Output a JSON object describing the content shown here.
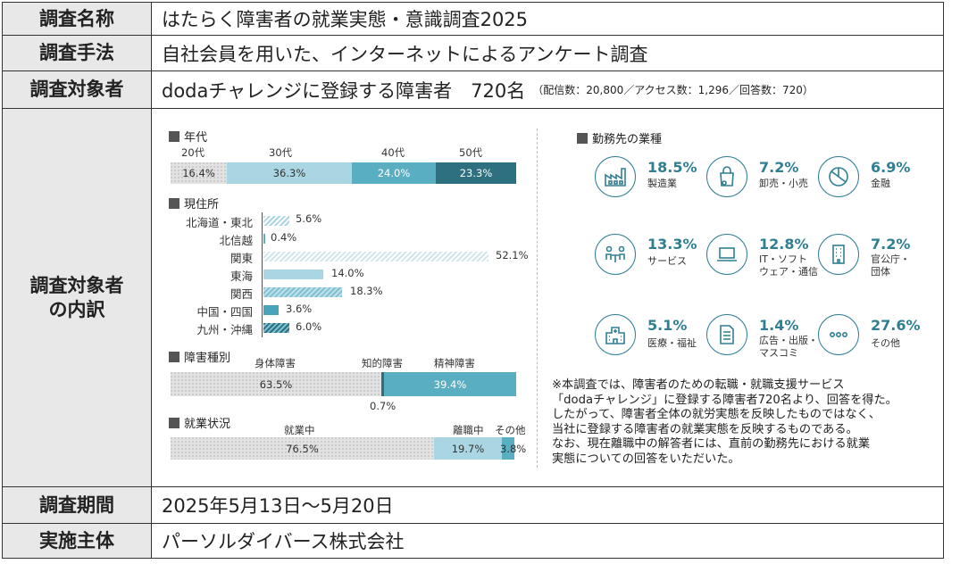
{
  "rows": {
    "name": {
      "label": "調査名称",
      "value": "はたらく障害者の就業実態・意識調査2025"
    },
    "method": {
      "label": "調査手法",
      "value": "自社会員を用いた、インターネットによるアンケート調査"
    },
    "target": {
      "label": "調査対象者",
      "value": "dodaチャレンジに登録する障害者　720名",
      "note": "（配信数：20,800／アクセス数：1,296／回答数：720）"
    },
    "breakdown": {
      "label_line1": "調査対象者",
      "label_line2": "の内訳"
    },
    "period": {
      "label": "調査期間",
      "value": "2025年5月13日～5月20日"
    },
    "org": {
      "label": "実施主体",
      "value": "パーソルダイバース株式会社"
    }
  },
  "age": {
    "title": "年代",
    "segments": [
      {
        "label": "20代",
        "value": "16.4%",
        "pct": 16.4
      },
      {
        "label": "30代",
        "value": "36.3%",
        "pct": 36.3
      },
      {
        "label": "40代",
        "value": "24.0%",
        "pct": 24.0
      },
      {
        "label": "50代",
        "value": "23.3%",
        "pct": 23.3
      }
    ]
  },
  "residence": {
    "title": "現住所",
    "items": [
      {
        "region": "北海道・東北",
        "value": "5.6%",
        "pct": 5.6
      },
      {
        "region": "北信越",
        "value": "0.4%",
        "pct": 0.4
      },
      {
        "region": "関東",
        "value": "52.1%",
        "pct": 52.1
      },
      {
        "region": "東海",
        "value": "14.0%",
        "pct": 14.0
      },
      {
        "region": "関西",
        "value": "18.3%",
        "pct": 18.3
      },
      {
        "region": "中国・四国",
        "value": "3.6%",
        "pct": 3.6
      },
      {
        "region": "九州・沖縄",
        "value": "6.0%",
        "pct": 6.0
      }
    ]
  },
  "disability": {
    "title": "障害種別",
    "segments": [
      {
        "label": "身体障害",
        "value": "63.5%",
        "pct": 63.5
      },
      {
        "label": "知的障害",
        "value": "0.7%",
        "pct": 0.7
      },
      {
        "label": "精神障害",
        "value": "39.4%",
        "pct": 39.4
      }
    ]
  },
  "employment": {
    "title": "就業状況",
    "segments": [
      {
        "label": "就業中",
        "value": "76.5%",
        "pct": 76.5
      },
      {
        "label": "離職中",
        "value": "19.7%",
        "pct": 19.7
      },
      {
        "label": "その他",
        "value": "3.8%",
        "pct": 3.8
      }
    ]
  },
  "industry": {
    "title": "勤務先の業種",
    "items": [
      {
        "pct": "18.5%",
        "name": "製造業",
        "icon": "factory-icon"
      },
      {
        "pct": "7.2%",
        "name": "卸売・小売",
        "icon": "shopping-bag-icon"
      },
      {
        "pct": "6.9%",
        "name": "金融",
        "icon": "pie-chart-icon"
      },
      {
        "pct": "13.3%",
        "name": "サービス",
        "icon": "people-table-icon"
      },
      {
        "pct": "12.8%",
        "name": "IT・ソフト\nウェア・通信",
        "icon": "laptop-icon"
      },
      {
        "pct": "7.2%",
        "name": "官公庁・\n団体",
        "icon": "building-icon"
      },
      {
        "pct": "5.1%",
        "name": "医療・福祉",
        "icon": "hospital-icon"
      },
      {
        "pct": "1.4%",
        "name": "広告・出版・\nマスコミ",
        "icon": "document-icon"
      },
      {
        "pct": "27.6%",
        "name": "その他",
        "icon": "ellipsis-icon"
      }
    ]
  },
  "note_lines": [
    "※本調査では、障害者のための転職・就職支援サービス",
    "「dodaチャレンジ」に登録する障害者720名より、回答を得た。",
    "したがって、障害者全体の就労実態を反映したものではなく、",
    "当社に登録する障害者の就業実態を反映するものである。",
    "なお、現在離職中の解答者には、直前の勤務先における就業",
    "実態についての回答をいただいた。"
  ],
  "colors": {
    "accent": "#2f7f93",
    "light": "#a9d6e2",
    "mid": "#5aaec2",
    "dark": "#2e6f80",
    "gray": "#e2e2e2",
    "label_bg": "#e8e8e8"
  }
}
